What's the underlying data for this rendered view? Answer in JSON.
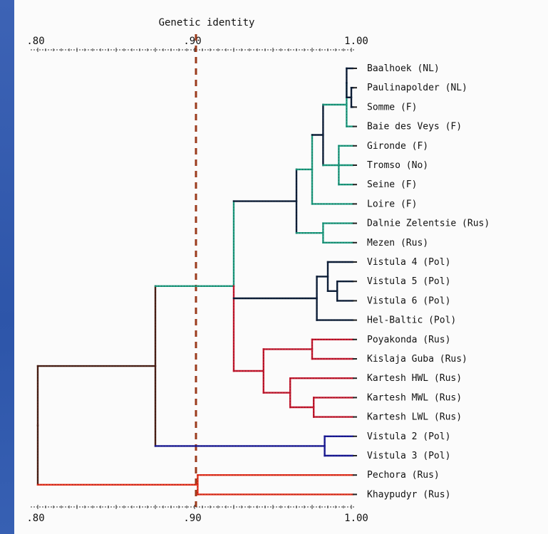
{
  "title": "Genetic identity",
  "axis": {
    "min": 0.8,
    "max": 1.0,
    "tick_labels": [
      {
        "value": 0.8,
        "label": ".80"
      },
      {
        "value": 0.9,
        "label": ".90"
      },
      {
        "value": 1.0,
        "label": "1.00"
      }
    ],
    "threshold": 0.9
  },
  "colors": {
    "green": "#1f9e82",
    "darknavy": "#0d1f3a",
    "red": "#c8192f",
    "brown": "#4a1f14",
    "blue": "#1a1a9a",
    "orange": "#e8321e",
    "threshold": "#9b3b1c"
  },
  "taxa": [
    "Baalhoek (NL)",
    "Paulinapolder (NL)",
    "Somme (F)",
    "Baie des Veys (F)",
    "Gironde (F)",
    "Tromso (No)",
    "Seine (F)",
    "Loire (F)",
    "Dalnie Zelentsie (Rus)",
    "Mezen (Rus)",
    "Vistula 4 (Pol)",
    "Vistula 5 (Pol)",
    "Vistula 6 (Pol)",
    "Hel-Baltic (Pol)",
    "Poyakonda (Rus)",
    "Kislaja Guba (Rus)",
    "Kartesh HWL (Rus)",
    "Kartesh MWL (Rus)",
    "Kartesh LWL (Rus)",
    "Vistula 2 (Pol)",
    "Vistula 3 (Pol)",
    "Pechora (Rus)",
    "Khaypudyr (Rus)"
  ]
}
